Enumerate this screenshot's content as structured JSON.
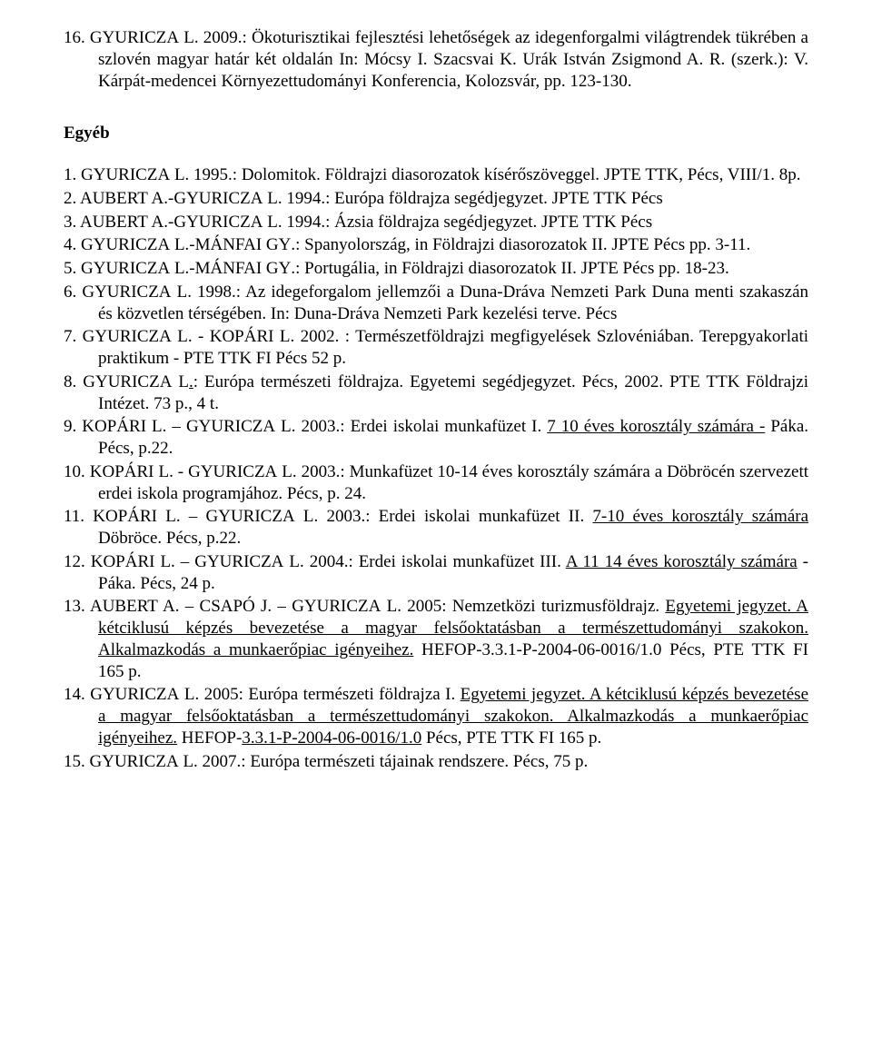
{
  "cont": {
    "num": "16.",
    "a": "G",
    "b": "YURICZA",
    "c": " L. 2009.: Ökoturisztikai fejlesztési lehetőségek az idegenforgalmi világtrendek tükrében a szlovén magyar határ két oldalán In: Mócsy I. Szacsvai K. Urák István Zsigmond A. R. (szerk.): V. Kárpát-medencei Környezettudományi Konferencia, Kolozsvár, pp. 123-130."
  },
  "heading": "Egyéb",
  "items": {
    "i1": {
      "n": "1.",
      "a": "G",
      "b": "YURICZA",
      "c": " L. 1995.: Dolomitok. Földrajzi diasorozatok kísérőszöveggel. JPTE TTK, Pécs, VIII/1. 8p."
    },
    "i2": {
      "n": "2.",
      "a1": "A",
      "b1": "UBERT",
      "c1": " A.-G",
      "a2": "",
      "b2": "YURICZA",
      "c2": " L. 1994.: Európa földrajza segédjegyzet. JPTE TTK Pécs"
    },
    "i3": {
      "n": "3.",
      "a1": "A",
      "b1": "UBERT",
      "c1": " A.-G",
      "b2": "YURICZA",
      "c2": " L. 1994.: Ázsia földrajza segédjegyzet. JPTE TTK Pécs"
    },
    "i4": {
      "n": "4.",
      "a1": "G",
      "b1": "YURICZA",
      "c1": " L.-M",
      "b2": "ÁNFAI",
      "c2": " G",
      "b3": "Y",
      "c3": ".: Spanyolország, in Földrajzi diasorozatok II. JPTE Pécs pp. 3-11."
    },
    "i5": {
      "n": "5.",
      "a1": "G",
      "b1": "YURICZA",
      "c1": " L.-M",
      "b2": "ÁNFAI",
      "c2": " G",
      "b3": "Y",
      "c3": ".: Portugália, in Földrajzi diasorozatok II. JPTE Pécs pp. 18-23."
    },
    "i6": {
      "n": "6.",
      "a": "G",
      "b": "YURICZA",
      "c": " L. 1998.: Az idegeforgalom jellemzői a Duna-Dráva Nemzeti Park Duna menti szakaszán és közvetlen térségében. In: Duna-Dráva Nemzeti Park kezelési terve. Pécs"
    },
    "i7": {
      "n": "7.",
      "a1": "G",
      "b1": "YURICZA",
      "c1": " L. - K",
      "b2": "OPÁRI",
      "c2": " L. 2002. : Természetföldrajzi megfigyelések Szlovéniában. Terepgyakorlati praktikum - PTE TTK FI Pécs 52 p."
    },
    "i8": {
      "n": "8.",
      "a": "G",
      "b": "YURICZA",
      "c": " L",
      "u": ".",
      "d": ": Európa természeti földrajza. Egyetemi segédjegyzet. Pécs, 2002. PTE TTK Földrajzi Intézet. 73 p., 4 t."
    },
    "i9": {
      "n": "9.",
      "a1": "K",
      "b1": "OPÁRI",
      "c1": " L. – G",
      "b2": "YURICZA",
      "c2": " L. 2003.: Erdei iskolai munkafüzet I. ",
      "u": "7 10 éves korosztály számára -",
      "d": " Páka. Pécs, p.22."
    },
    "i10": {
      "n": "10.",
      "a1": "K",
      "b1": "OPÁRI",
      "c1": " L. - G",
      "b2": "YURICZA",
      "c2": " L. 2003.: Munkafüzet 10-14 éves korosztály számára a Döbröcén szervezett erdei iskola programjához. Pécs, p. 24."
    },
    "i11": {
      "n": "11.",
      "a1": "K",
      "b1": "OPÁRI",
      "c1": " L. – G",
      "b2": "YURICZA",
      "c2": " L. 2003.: Erdei iskolai munkafüzet II. ",
      "u": "7-10 éves korosztály számára",
      "d": " Döbröce. Pécs, p.22."
    },
    "i12": {
      "n": "12.",
      "a1": "K",
      "b1": "OPÁRI",
      "c1": " L. – G",
      "b2": "YURICZA",
      "c2": " L. 2004.: Erdei iskolai munkafüzet III. ",
      "u": "A 11 14 éves korosztály számára",
      "d": " - Páka. Pécs, 24 p."
    },
    "i13": {
      "n": "13.",
      "a1": "A",
      "b1": "UBERT",
      "c1": " A. – C",
      "b2": "SAPÓ",
      "c2": " J. – G",
      "b3": "YURICZA",
      "c3": " L. 2005: Nemzetközi turizmusföldrajz. ",
      "u": "Egyetemi jegyzet. A kétciklusú képzés bevezetése a magyar felsőoktatásban a természettudományi szakokon. Alkalmazkodás a munkaerőpiac igényeihez.",
      "d": " HEFOP-3.3.1-P-2004-06-0016/1.0 Pécs, PTE TTK FI 165 p."
    },
    "i14": {
      "n": "14.",
      "a": "G",
      "b": "YURICZA",
      "c": " L. 2005: Európa természeti földrajza I. ",
      "u": "Egyetemi jegyzet. A kétciklusú képzés bevezetése a magyar felsőoktatásban a természettudományi szakokon. Alkalmazkodás a munkaerőpiac igényeihez.",
      "d": " HEFOP-",
      "u2": "3.3.1-P-2004-06-0016/1.0",
      "d2": " Pécs, PTE TTK FI 165 p."
    },
    "i15": {
      "n": "15.",
      "a": "G",
      "b": "YURICZA",
      "c": " L. 2007.: Európa természeti tájainak rendszere. Pécs, 75 p."
    }
  }
}
